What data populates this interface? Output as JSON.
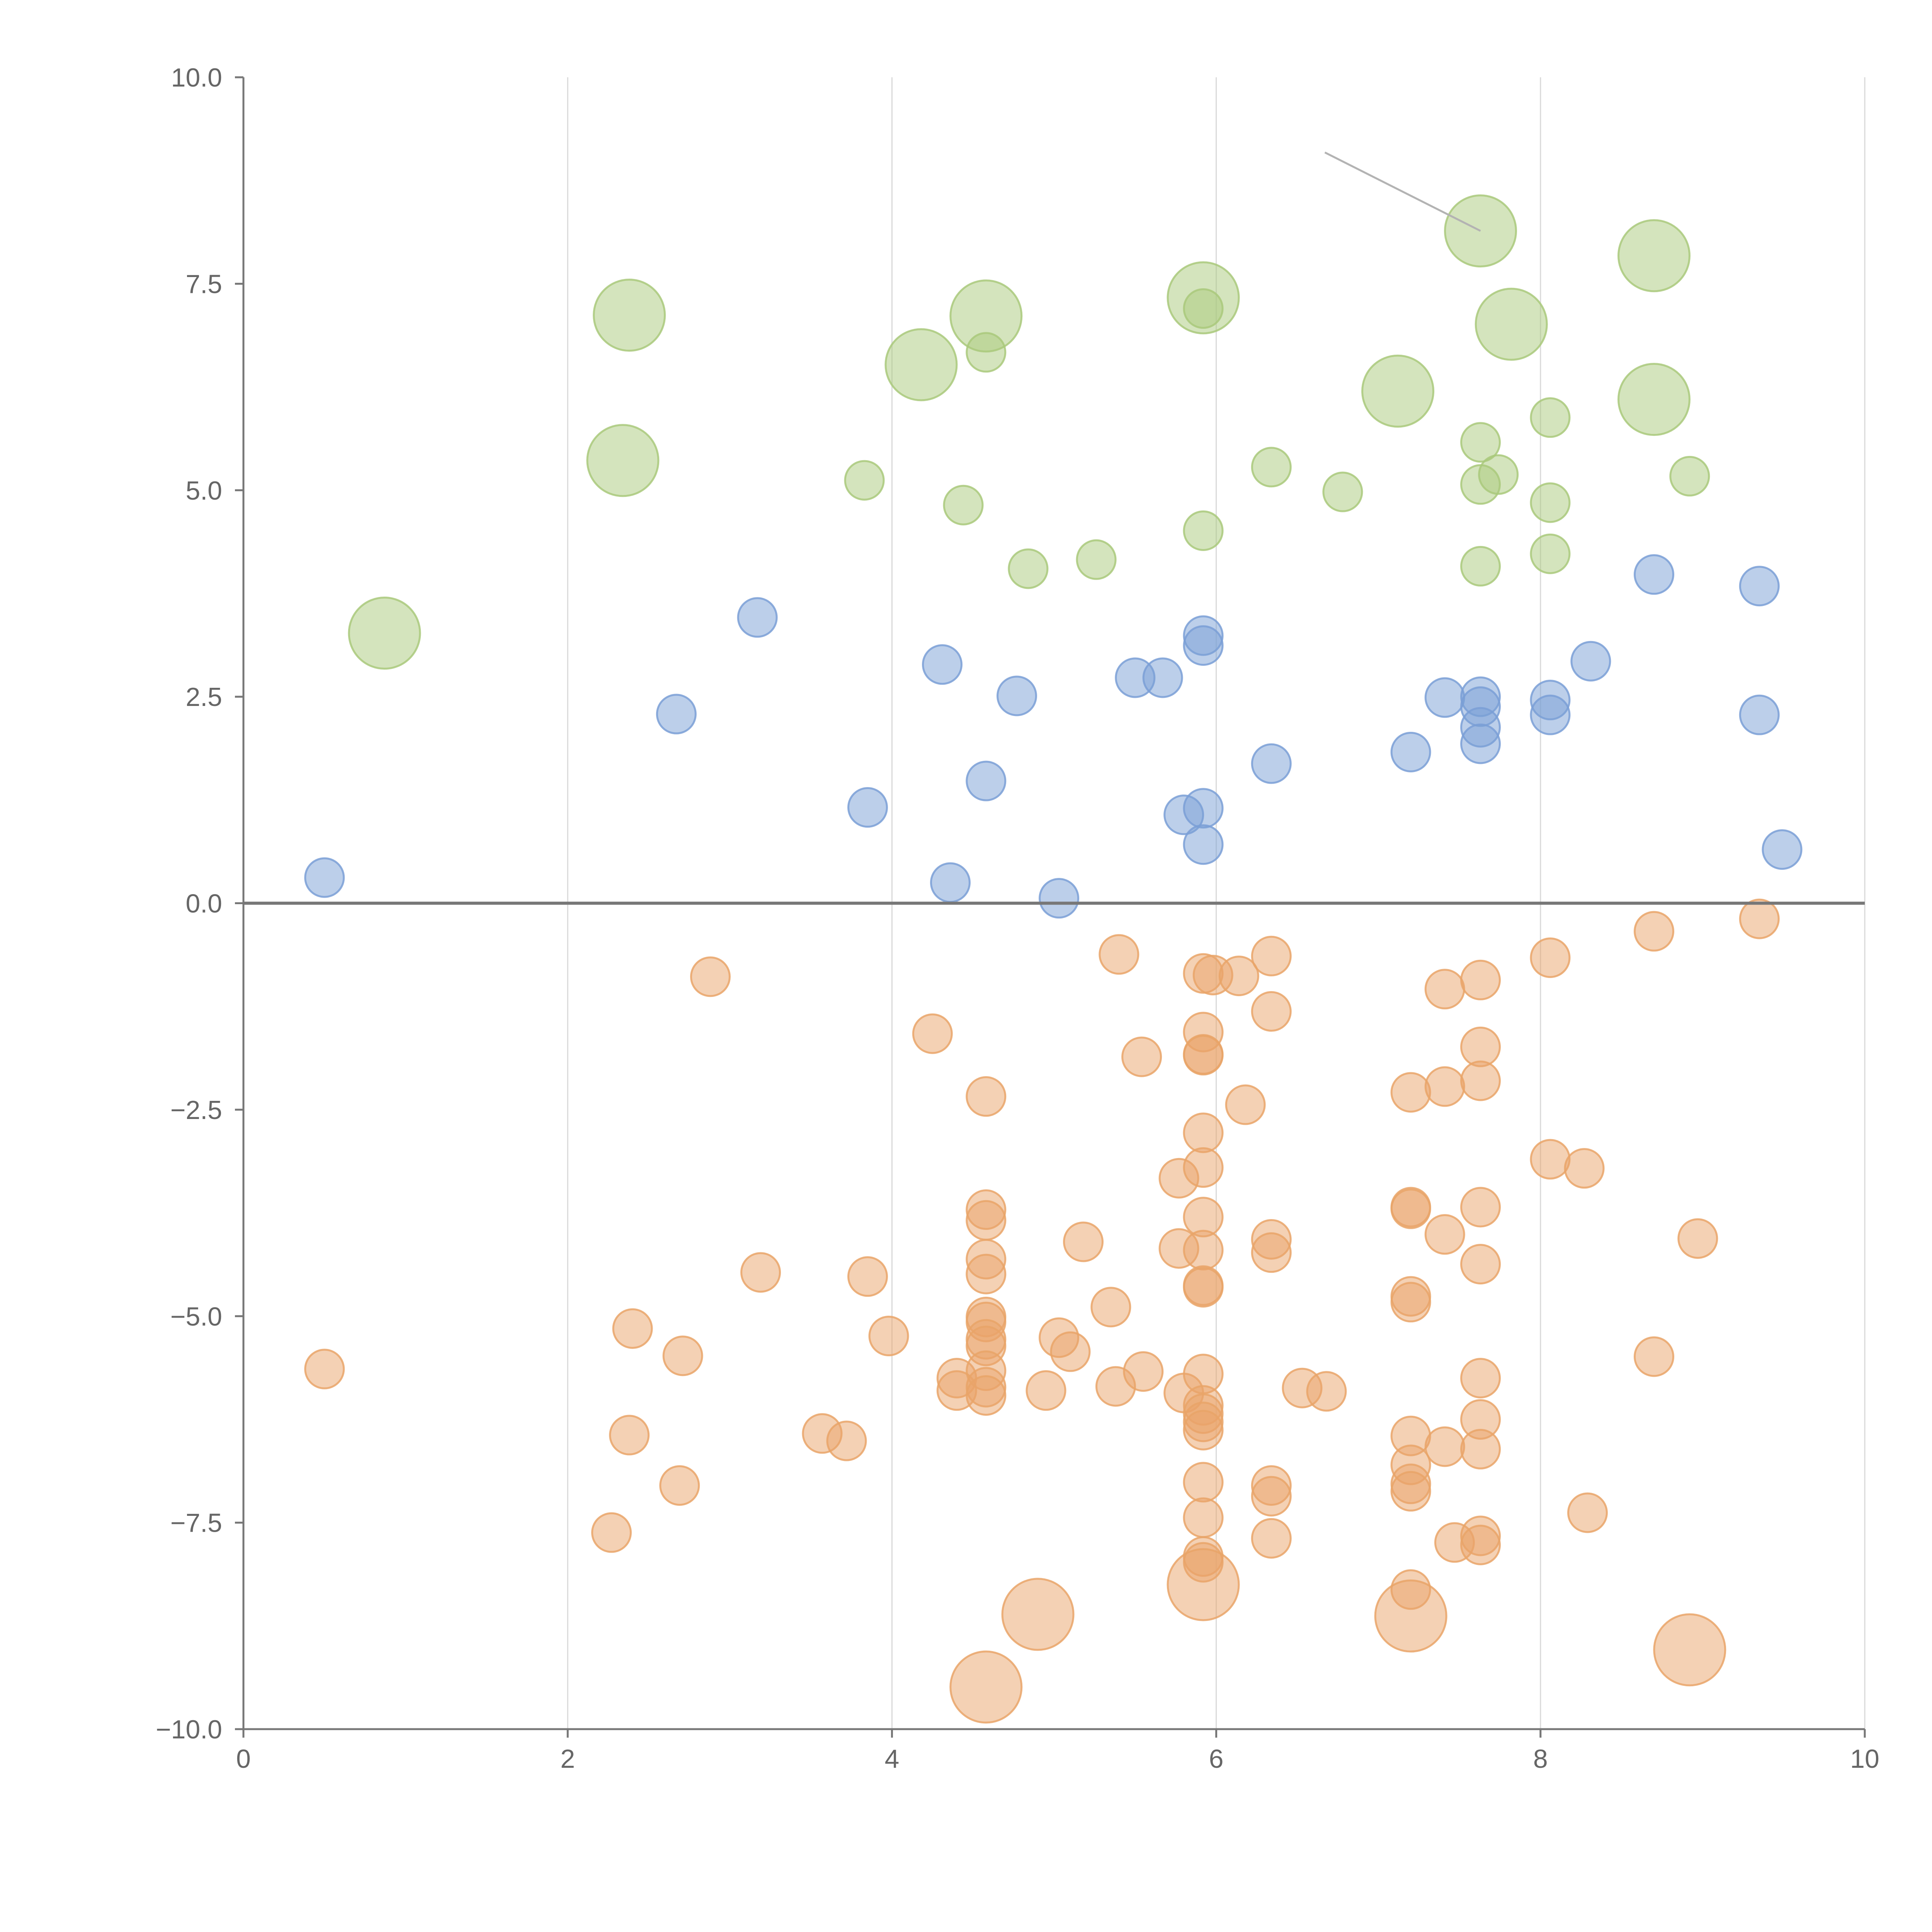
{
  "chart_data": {
    "type": "scatter",
    "title": "",
    "xlabel": "",
    "ylabel": "",
    "xlim": [
      0,
      10
    ],
    "ylim": [
      -10,
      10
    ],
    "grid": "vertical",
    "x_ticks": [
      "0",
      "2",
      "4",
      "6",
      "8",
      "10"
    ],
    "y_ticks": [
      "10.0",
      "7.5",
      "5.0",
      "2.5",
      "0.0",
      "−2.5",
      "−5.0",
      "−7.5",
      "−10.0"
    ],
    "series": [
      {
        "name": "green",
        "color": "#a9c97b",
        "points": [
          {
            "x": 0.87,
            "y": 3.27,
            "size": "large"
          },
          {
            "x": 2.34,
            "y": 5.36,
            "size": "large"
          },
          {
            "x": 2.38,
            "y": 7.12,
            "size": "large"
          },
          {
            "x": 3.83,
            "y": 5.12,
            "size": "small"
          },
          {
            "x": 4.18,
            "y": 6.52,
            "size": "large"
          },
          {
            "x": 4.44,
            "y": 4.82,
            "size": "small"
          },
          {
            "x": 4.58,
            "y": 7.11,
            "size": "large"
          },
          {
            "x": 4.58,
            "y": 6.67,
            "size": "small"
          },
          {
            "x": 4.84,
            "y": 4.05,
            "size": "small"
          },
          {
            "x": 5.26,
            "y": 4.16,
            "size": "small"
          },
          {
            "x": 5.92,
            "y": 7.33,
            "size": "large"
          },
          {
            "x": 5.92,
            "y": 7.2,
            "size": "small"
          },
          {
            "x": 5.92,
            "y": 4.51,
            "size": "small"
          },
          {
            "x": 6.34,
            "y": 5.28,
            "size": "small"
          },
          {
            "x": 6.78,
            "y": 4.98,
            "size": "small"
          },
          {
            "x": 7.12,
            "y": 6.2,
            "size": "large"
          },
          {
            "x": 7.63,
            "y": 8.14,
            "size": "large"
          },
          {
            "x": 7.63,
            "y": 5.58,
            "size": "small"
          },
          {
            "x": 7.63,
            "y": 5.07,
            "size": "small"
          },
          {
            "x": 7.63,
            "y": 4.08,
            "size": "small"
          },
          {
            "x": 7.74,
            "y": 5.19,
            "size": "small"
          },
          {
            "x": 7.82,
            "y": 7.01,
            "size": "large"
          },
          {
            "x": 8.06,
            "y": 5.88,
            "size": "small"
          },
          {
            "x": 8.06,
            "y": 4.85,
            "size": "small"
          },
          {
            "x": 8.06,
            "y": 4.23,
            "size": "small"
          },
          {
            "x": 8.7,
            "y": 7.84,
            "size": "large"
          },
          {
            "x": 8.7,
            "y": 6.1,
            "size": "large"
          },
          {
            "x": 8.92,
            "y": 5.17,
            "size": "small"
          }
        ]
      },
      {
        "name": "blue",
        "color": "#7a9fd6",
        "points": [
          {
            "x": 0.5,
            "y": 0.31,
            "size": "small"
          },
          {
            "x": 2.67,
            "y": 2.29,
            "size": "small"
          },
          {
            "x": 3.17,
            "y": 3.46,
            "size": "small"
          },
          {
            "x": 3.85,
            "y": 1.16,
            "size": "small"
          },
          {
            "x": 4.31,
            "y": 2.89,
            "size": "small"
          },
          {
            "x": 4.36,
            "y": 0.25,
            "size": "small"
          },
          {
            "x": 4.58,
            "y": 1.48,
            "size": "small"
          },
          {
            "x": 4.77,
            "y": 2.51,
            "size": "small"
          },
          {
            "x": 5.03,
            "y": 0.06,
            "size": "small"
          },
          {
            "x": 5.5,
            "y": 2.73,
            "size": "small"
          },
          {
            "x": 5.67,
            "y": 2.73,
            "size": "small"
          },
          {
            "x": 5.8,
            "y": 1.07,
            "size": "small"
          },
          {
            "x": 5.92,
            "y": 3.24,
            "size": "small"
          },
          {
            "x": 5.92,
            "y": 3.12,
            "size": "small"
          },
          {
            "x": 5.92,
            "y": 1.15,
            "size": "small"
          },
          {
            "x": 5.92,
            "y": 0.71,
            "size": "small"
          },
          {
            "x": 6.34,
            "y": 1.69,
            "size": "small"
          },
          {
            "x": 7.2,
            "y": 1.83,
            "size": "small"
          },
          {
            "x": 7.41,
            "y": 2.49,
            "size": "small"
          },
          {
            "x": 7.63,
            "y": 2.5,
            "size": "small"
          },
          {
            "x": 7.63,
            "y": 2.38,
            "size": "small"
          },
          {
            "x": 7.63,
            "y": 2.13,
            "size": "small"
          },
          {
            "x": 7.63,
            "y": 1.93,
            "size": "small"
          },
          {
            "x": 8.06,
            "y": 2.46,
            "size": "small"
          },
          {
            "x": 8.06,
            "y": 2.28,
            "size": "small"
          },
          {
            "x": 8.31,
            "y": 2.93,
            "size": "small"
          },
          {
            "x": 8.7,
            "y": 3.98,
            "size": "small"
          },
          {
            "x": 9.35,
            "y": 3.84,
            "size": "small"
          },
          {
            "x": 9.35,
            "y": 2.28,
            "size": "small"
          },
          {
            "x": 9.49,
            "y": 0.65,
            "size": "small"
          }
        ]
      },
      {
        "name": "orange",
        "color": "#e9a469",
        "points": [
          {
            "x": 0.5,
            "y": -5.64,
            "size": "small"
          },
          {
            "x": 2.27,
            "y": -7.62,
            "size": "small"
          },
          {
            "x": 2.38,
            "y": -6.44,
            "size": "small"
          },
          {
            "x": 2.4,
            "y": -5.15,
            "size": "small"
          },
          {
            "x": 2.69,
            "y": -7.05,
            "size": "small"
          },
          {
            "x": 2.71,
            "y": -5.48,
            "size": "small"
          },
          {
            "x": 2.88,
            "y": -0.89,
            "size": "small"
          },
          {
            "x": 3.19,
            "y": -4.47,
            "size": "small"
          },
          {
            "x": 3.57,
            "y": -6.42,
            "size": "small"
          },
          {
            "x": 3.72,
            "y": -6.51,
            "size": "small"
          },
          {
            "x": 3.85,
            "y": -4.52,
            "size": "small"
          },
          {
            "x": 3.98,
            "y": -5.24,
            "size": "small"
          },
          {
            "x": 4.25,
            "y": -1.58,
            "size": "small"
          },
          {
            "x": 4.4,
            "y": -5.75,
            "size": "small"
          },
          {
            "x": 4.4,
            "y": -5.9,
            "size": "small"
          },
          {
            "x": 4.58,
            "y": -2.34,
            "size": "small"
          },
          {
            "x": 4.58,
            "y": -3.71,
            "size": "small"
          },
          {
            "x": 4.58,
            "y": -3.84,
            "size": "small"
          },
          {
            "x": 4.58,
            "y": -4.31,
            "size": "small"
          },
          {
            "x": 4.58,
            "y": -4.49,
            "size": "small"
          },
          {
            "x": 4.58,
            "y": -5.01,
            "size": "small"
          },
          {
            "x": 4.58,
            "y": -5.07,
            "size": "small"
          },
          {
            "x": 4.58,
            "y": -5.28,
            "size": "small"
          },
          {
            "x": 4.58,
            "y": -5.36,
            "size": "small"
          },
          {
            "x": 4.58,
            "y": -5.66,
            "size": "small"
          },
          {
            "x": 4.58,
            "y": -5.86,
            "size": "small"
          },
          {
            "x": 4.58,
            "y": -5.96,
            "size": "small"
          },
          {
            "x": 4.58,
            "y": -9.49,
            "size": "large"
          },
          {
            "x": 4.9,
            "y": -8.61,
            "size": "large"
          },
          {
            "x": 4.95,
            "y": -5.9,
            "size": "small"
          },
          {
            "x": 5.03,
            "y": -5.26,
            "size": "small"
          },
          {
            "x": 5.1,
            "y": -5.43,
            "size": "small"
          },
          {
            "x": 5.18,
            "y": -4.1,
            "size": "small"
          },
          {
            "x": 5.35,
            "y": -4.89,
            "size": "small"
          },
          {
            "x": 5.38,
            "y": -5.85,
            "size": "small"
          },
          {
            "x": 5.4,
            "y": -0.62,
            "size": "small"
          },
          {
            "x": 5.54,
            "y": -1.86,
            "size": "small"
          },
          {
            "x": 5.55,
            "y": -5.67,
            "size": "small"
          },
          {
            "x": 5.77,
            "y": -3.33,
            "size": "small"
          },
          {
            "x": 5.77,
            "y": -4.18,
            "size": "small"
          },
          {
            "x": 5.8,
            "y": -5.93,
            "size": "small"
          },
          {
            "x": 5.92,
            "y": -0.85,
            "size": "small"
          },
          {
            "x": 5.92,
            "y": -1.56,
            "size": "small"
          },
          {
            "x": 5.92,
            "y": -1.83,
            "size": "small"
          },
          {
            "x": 5.92,
            "y": -1.84,
            "size": "small"
          },
          {
            "x": 5.92,
            "y": -2.78,
            "size": "small"
          },
          {
            "x": 5.92,
            "y": -3.2,
            "size": "small"
          },
          {
            "x": 5.92,
            "y": -3.8,
            "size": "small"
          },
          {
            "x": 5.92,
            "y": -4.2,
            "size": "small"
          },
          {
            "x": 5.92,
            "y": -4.63,
            "size": "small"
          },
          {
            "x": 5.92,
            "y": -4.65,
            "size": "small"
          },
          {
            "x": 5.92,
            "y": -5.7,
            "size": "small"
          },
          {
            "x": 5.92,
            "y": -6.08,
            "size": "small"
          },
          {
            "x": 5.92,
            "y": -6.18,
            "size": "small"
          },
          {
            "x": 5.92,
            "y": -6.28,
            "size": "small"
          },
          {
            "x": 5.92,
            "y": -6.38,
            "size": "small"
          },
          {
            "x": 5.92,
            "y": -7.01,
            "size": "small"
          },
          {
            "x": 5.92,
            "y": -7.44,
            "size": "small"
          },
          {
            "x": 5.92,
            "y": -7.91,
            "size": "small"
          },
          {
            "x": 5.92,
            "y": -7.98,
            "size": "small"
          },
          {
            "x": 5.92,
            "y": -8.25,
            "size": "large"
          },
          {
            "x": 5.98,
            "y": -0.87,
            "size": "small"
          },
          {
            "x": 6.14,
            "y": -0.88,
            "size": "small"
          },
          {
            "x": 6.18,
            "y": -2.44,
            "size": "small"
          },
          {
            "x": 6.34,
            "y": -0.64,
            "size": "small"
          },
          {
            "x": 6.34,
            "y": -1.31,
            "size": "small"
          },
          {
            "x": 6.34,
            "y": -4.07,
            "size": "small"
          },
          {
            "x": 6.34,
            "y": -4.23,
            "size": "small"
          },
          {
            "x": 6.34,
            "y": -7.05,
            "size": "small"
          },
          {
            "x": 6.34,
            "y": -7.18,
            "size": "small"
          },
          {
            "x": 6.34,
            "y": -7.69,
            "size": "small"
          },
          {
            "x": 6.53,
            "y": -5.87,
            "size": "small"
          },
          {
            "x": 6.68,
            "y": -5.91,
            "size": "small"
          },
          {
            "x": 7.2,
            "y": -2.29,
            "size": "small"
          },
          {
            "x": 7.2,
            "y": -3.68,
            "size": "small"
          },
          {
            "x": 7.2,
            "y": -3.7,
            "size": "small"
          },
          {
            "x": 7.2,
            "y": -4.76,
            "size": "small"
          },
          {
            "x": 7.2,
            "y": -4.83,
            "size": "small"
          },
          {
            "x": 7.2,
            "y": -6.45,
            "size": "small"
          },
          {
            "x": 7.2,
            "y": -6.8,
            "size": "small"
          },
          {
            "x": 7.2,
            "y": -7.03,
            "size": "small"
          },
          {
            "x": 7.2,
            "y": -7.12,
            "size": "small"
          },
          {
            "x": 7.2,
            "y": -8.31,
            "size": "small"
          },
          {
            "x": 7.2,
            "y": -8.63,
            "size": "large"
          },
          {
            "x": 7.41,
            "y": -1.04,
            "size": "small"
          },
          {
            "x": 7.41,
            "y": -2.22,
            "size": "small"
          },
          {
            "x": 7.41,
            "y": -4.01,
            "size": "small"
          },
          {
            "x": 7.41,
            "y": -6.58,
            "size": "small"
          },
          {
            "x": 7.47,
            "y": -7.74,
            "size": "small"
          },
          {
            "x": 7.63,
            "y": -0.93,
            "size": "small"
          },
          {
            "x": 7.63,
            "y": -1.74,
            "size": "small"
          },
          {
            "x": 7.63,
            "y": -2.15,
            "size": "small"
          },
          {
            "x": 7.63,
            "y": -3.68,
            "size": "small"
          },
          {
            "x": 7.63,
            "y": -4.37,
            "size": "small"
          },
          {
            "x": 7.63,
            "y": -5.75,
            "size": "small"
          },
          {
            "x": 7.63,
            "y": -6.25,
            "size": "small"
          },
          {
            "x": 7.63,
            "y": -6.61,
            "size": "small"
          },
          {
            "x": 7.63,
            "y": -7.66,
            "size": "small"
          },
          {
            "x": 7.63,
            "y": -7.77,
            "size": "small"
          },
          {
            "x": 8.06,
            "y": -0.66,
            "size": "small"
          },
          {
            "x": 8.06,
            "y": -3.1,
            "size": "small"
          },
          {
            "x": 8.27,
            "y": -3.21,
            "size": "small"
          },
          {
            "x": 8.29,
            "y": -7.38,
            "size": "small"
          },
          {
            "x": 8.7,
            "y": -0.34,
            "size": "small"
          },
          {
            "x": 8.7,
            "y": -5.49,
            "size": "small"
          },
          {
            "x": 8.92,
            "y": -9.04,
            "size": "large"
          },
          {
            "x": 8.97,
            "y": -4.06,
            "size": "small"
          },
          {
            "x": 9.35,
            "y": -0.19,
            "size": "small"
          }
        ]
      }
    ],
    "annotations": [
      {
        "type": "leader-line",
        "from": {
          "x": 6.67,
          "y": 9.09
        },
        "to": {
          "x": 7.63,
          "y": 8.14
        }
      }
    ]
  }
}
